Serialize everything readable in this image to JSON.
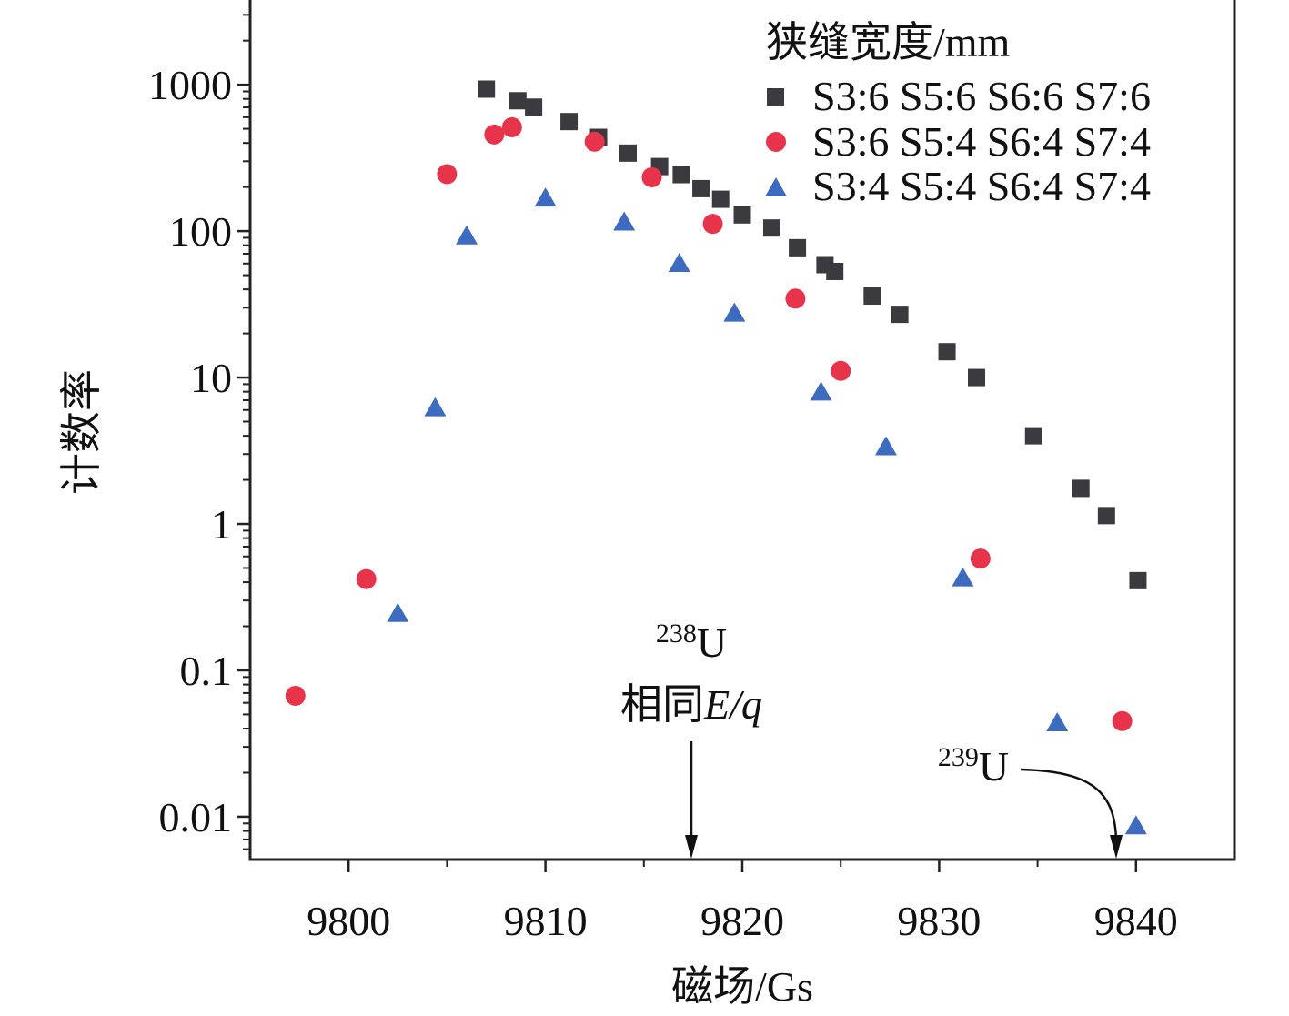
{
  "chart_data": {
    "type": "scatter",
    "title": "",
    "xlabel": "磁场/Gs",
    "ylabel": "计数率",
    "xlim": [
      9795,
      9845
    ],
    "ylim": [
      0.0051,
      3900
    ],
    "yscale": "log",
    "x_ticks": [
      9800,
      9810,
      9820,
      9830,
      9840
    ],
    "x_tick_labels": [
      "9800",
      "9810",
      "9820",
      "9830",
      "9840"
    ],
    "y_ticks": [
      0.01,
      0.1,
      1,
      10,
      100,
      1000
    ],
    "y_tick_labels": [
      "0.01",
      "0.1",
      "1",
      "10",
      "100",
      "1000"
    ],
    "grid": false,
    "legend": {
      "title": "狭缝宽度/mm",
      "placement": "top-right"
    },
    "series": [
      {
        "name": "S3:6 S5:6 S6:6 S7:6",
        "marker": "square",
        "color": "#3a3a3f",
        "x": [
          9807.0,
          9808.6,
          9809.4,
          9811.2,
          9812.7,
          9814.2,
          9815.8,
          9816.9,
          9817.9,
          9818.9,
          9820.0,
          9821.5,
          9822.8,
          9824.2,
          9824.7,
          9826.6,
          9828.0,
          9830.4,
          9831.9,
          9834.8,
          9837.2,
          9838.5,
          9840.1
        ],
        "y": [
          933,
          777,
          703,
          560,
          437,
          341,
          276,
          243,
          195,
          165,
          129,
          105,
          77,
          59,
          53,
          36,
          27,
          15,
          10,
          4.0,
          1.75,
          1.14,
          0.41
        ]
      },
      {
        "name": "S3:6 S5:4 S6:4 S7:4",
        "marker": "circle",
        "color": "#e8344a",
        "x": [
          9797.3,
          9800.9,
          9805.0,
          9807.4,
          9808.3,
          9812.5,
          9815.4,
          9818.5,
          9822.7,
          9825.0,
          9832.1,
          9839.3
        ],
        "y": [
          0.067,
          0.42,
          245,
          457,
          512,
          408,
          233,
          112,
          34.6,
          11.1,
          0.58,
          0.045
        ]
      },
      {
        "name": "S3:4 S5:4 S6:4 S7:4",
        "marker": "triangle",
        "color": "#3c6bc0",
        "x": [
          9802.5,
          9804.4,
          9806.0,
          9810.0,
          9814.0,
          9816.8,
          9819.6,
          9824.0,
          9827.3,
          9831.2,
          9836.0,
          9840.0
        ],
        "y": [
          0.24,
          6.1,
          91,
          165,
          113,
          59,
          27,
          7.8,
          3.3,
          0.42,
          0.043,
          0.0085
        ]
      }
    ],
    "annotations": [
      {
        "mass": "238",
        "text": "U",
        "sub": "相同",
        "italic": "E/q",
        "x": 9817.4
      },
      {
        "mass": "239",
        "text": "U",
        "x": 9839.0
      }
    ]
  }
}
